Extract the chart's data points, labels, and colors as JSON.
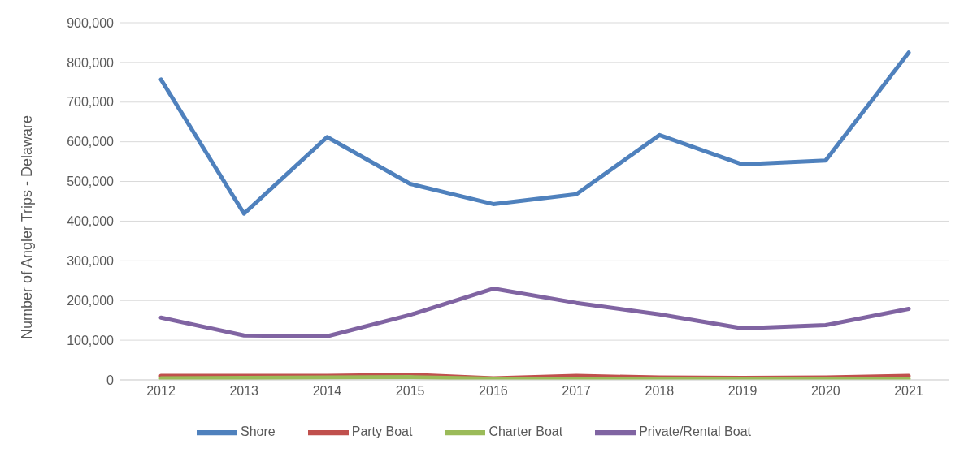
{
  "chart_data": {
    "type": "line",
    "ylabel": "Number of Angler Trips - Delaware",
    "categories": [
      "2012",
      "2013",
      "2014",
      "2015",
      "2016",
      "2017",
      "2018",
      "2019",
      "2020",
      "2021"
    ],
    "series": [
      {
        "name": "Shore",
        "color": "#4f81bd",
        "values": [
          757000,
          419000,
          612000,
          494000,
          443000,
          468000,
          617000,
          543000,
          553000,
          825000
        ]
      },
      {
        "name": "Party Boat",
        "color": "#c0504d",
        "values": [
          10000,
          10000,
          10000,
          13000,
          4000,
          10000,
          6000,
          5000,
          6000,
          10000
        ]
      },
      {
        "name": "Charter Boat",
        "color": "#9bbb59",
        "values": [
          4000,
          5000,
          6000,
          7000,
          3000,
          3000,
          3000,
          3000,
          2000,
          3000
        ]
      },
      {
        "name": "Private/Rental Boat",
        "color": "#8064a2",
        "values": [
          157000,
          112000,
          110000,
          164000,
          230000,
          194000,
          165000,
          130000,
          138000,
          179000
        ]
      }
    ],
    "ylim": [
      0,
      900000
    ],
    "yticks": [
      0,
      {
        "value": 100000,
        "label": "100,000"
      },
      {
        "value": 200000,
        "label": "200,000"
      },
      {
        "value": 300000,
        "label": "300,000"
      },
      {
        "value": 400000,
        "label": "400,000"
      },
      {
        "value": 500000,
        "label": "500,000"
      },
      {
        "value": 600000,
        "label": "600,000"
      },
      {
        "value": 700000,
        "label": "700,000"
      },
      {
        "value": 800000,
        "label": "800,000"
      },
      {
        "value": 900000,
        "label": "900,000"
      }
    ],
    "grid": "y",
    "legend": "bottom",
    "marker": "none",
    "line_style": "solid"
  }
}
